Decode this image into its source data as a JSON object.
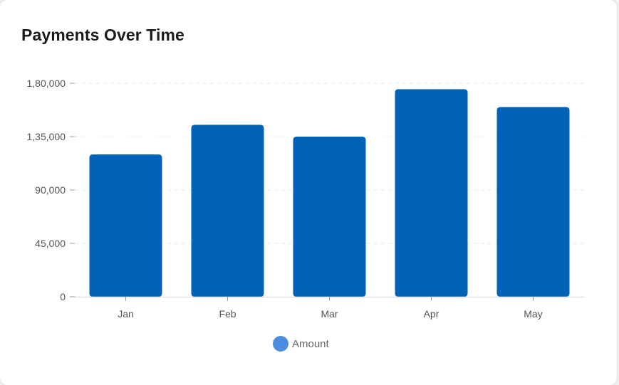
{
  "card": {
    "title": "Payments Over Time"
  },
  "chart_data": {
    "type": "bar",
    "title": "Payments Over Time",
    "categories": [
      "Jan",
      "Feb",
      "Mar",
      "Apr",
      "May"
    ],
    "series": [
      {
        "name": "Amount",
        "color": "#0063b8",
        "values": [
          120000,
          145000,
          135000,
          175000,
          160000
        ]
      }
    ],
    "xlabel": "",
    "ylabel": "",
    "ylim": [
      0,
      180000
    ],
    "yticks": [
      0,
      45000,
      90000,
      135000,
      180000
    ],
    "ytick_labels": [
      "0",
      "45,000",
      "90,000",
      "1,35,000",
      "1,80,000"
    ],
    "grid": "horizontal dashed",
    "legend": {
      "position": "bottom-center",
      "marker_color": "#4a8de0",
      "marker_shape": "circle"
    }
  }
}
